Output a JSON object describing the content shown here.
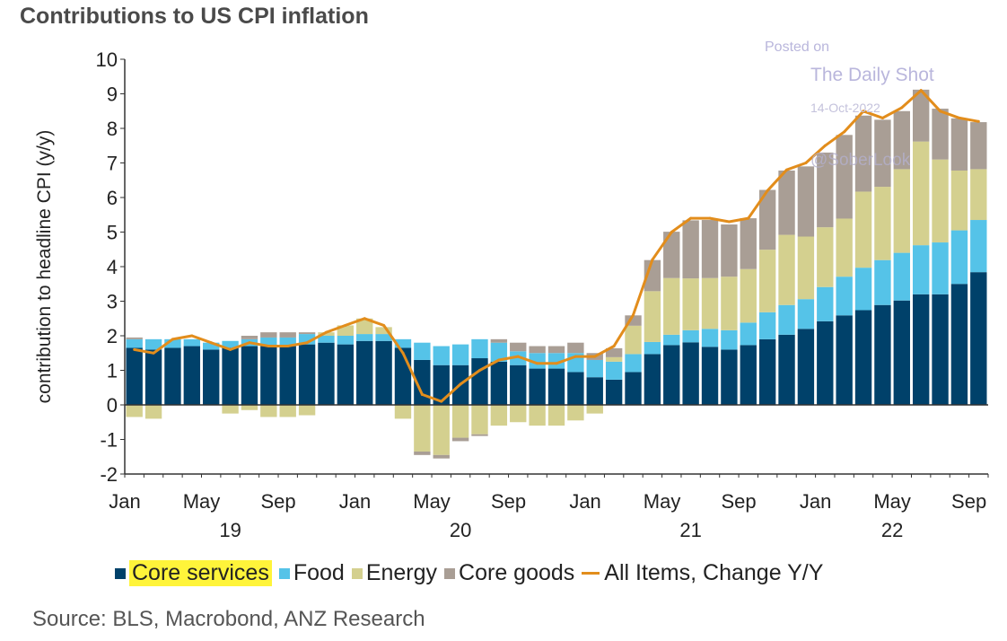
{
  "chart_data": {
    "type": "bar",
    "stacked": true,
    "title": "Contributions to US CPI inflation",
    "ylabel": "contribution to headline CPI (y/y)",
    "xlabel": "",
    "ylim": [
      -2,
      10
    ],
    "yticks": [
      10,
      9,
      8,
      7,
      6,
      5,
      4,
      3,
      2,
      1,
      0,
      -1,
      -2
    ],
    "months": [
      "Jan 19",
      "Feb 19",
      "Mar 19",
      "Apr 19",
      "May 19",
      "Jun 19",
      "Jul 19",
      "Aug 19",
      "Sep 19",
      "Oct 19",
      "Nov 19",
      "Dec 19",
      "Jan 20",
      "Feb 20",
      "Mar 20",
      "Apr 20",
      "May 20",
      "Jun 20",
      "Jul 20",
      "Aug 20",
      "Sep 20",
      "Oct 20",
      "Nov 20",
      "Dec 20",
      "Jan 21",
      "Feb 21",
      "Mar 21",
      "Apr 21",
      "May 21",
      "Jun 21",
      "Jul 21",
      "Aug 21",
      "Sep 21",
      "Oct 21",
      "Nov 21",
      "Dec 21",
      "Jan 22",
      "Feb 22",
      "Mar 22",
      "Apr 22",
      "May 22",
      "Jun 22",
      "Jul 22",
      "Aug 22",
      "Sep 22"
    ],
    "xtick_labels": [
      {
        "index": 0,
        "label": "Jan"
      },
      {
        "index": 4,
        "label": "May"
      },
      {
        "index": 8,
        "label": "Sep"
      },
      {
        "index": 12,
        "label": "Jan"
      },
      {
        "index": 16,
        "label": "May"
      },
      {
        "index": 20,
        "label": "Sep"
      },
      {
        "index": 24,
        "label": "Jan"
      },
      {
        "index": 28,
        "label": "May"
      },
      {
        "index": 32,
        "label": "Sep"
      },
      {
        "index": 36,
        "label": "Jan"
      },
      {
        "index": 40,
        "label": "May"
      },
      {
        "index": 44,
        "label": "Sep"
      }
    ],
    "year_labels": [
      {
        "index": 5.5,
        "label": "19"
      },
      {
        "index": 17.5,
        "label": "20"
      },
      {
        "index": 29.5,
        "label": "21"
      },
      {
        "index": 40,
        "label": "22"
      }
    ],
    "series": [
      {
        "name": "Core services",
        "type": "bar",
        "color": "#00416a",
        "values": [
          1.65,
          1.6,
          1.65,
          1.7,
          1.6,
          1.65,
          1.7,
          1.7,
          1.7,
          1.75,
          1.8,
          1.75,
          1.85,
          1.85,
          1.65,
          1.3,
          1.15,
          1.15,
          1.35,
          1.25,
          1.15,
          1.05,
          1.05,
          0.95,
          0.8,
          0.73,
          0.95,
          1.47,
          1.73,
          1.81,
          1.68,
          1.6,
          1.73,
          1.9,
          2.03,
          2.2,
          2.42,
          2.59,
          2.74,
          2.89,
          3.02,
          3.2,
          3.2,
          3.5,
          3.84
        ]
      },
      {
        "name": "Food",
        "type": "bar",
        "color": "#55c3e8",
        "values": [
          0.25,
          0.3,
          0.25,
          0.2,
          0.2,
          0.2,
          0.2,
          0.25,
          0.25,
          0.3,
          0.2,
          0.25,
          0.2,
          0.2,
          0.25,
          0.5,
          0.55,
          0.6,
          0.55,
          0.55,
          0.4,
          0.45,
          0.45,
          0.55,
          0.5,
          0.52,
          0.52,
          0.35,
          0.3,
          0.35,
          0.52,
          0.56,
          0.65,
          0.78,
          0.86,
          0.86,
          0.99,
          1.12,
          1.23,
          1.3,
          1.38,
          1.42,
          1.5,
          1.55,
          1.51
        ]
      },
      {
        "name": "Energy",
        "type": "bar",
        "color": "#d4d08f",
        "values": [
          -0.35,
          -0.4,
          0.0,
          0.0,
          0.0,
          -0.25,
          -0.15,
          -0.35,
          -0.35,
          -0.3,
          0.1,
          0.3,
          0.45,
          0.2,
          -0.4,
          -1.35,
          -1.45,
          -0.95,
          -0.85,
          -0.6,
          -0.5,
          -0.6,
          -0.6,
          -0.45,
          -0.25,
          0.13,
          0.82,
          1.47,
          1.64,
          1.5,
          1.47,
          1.55,
          1.55,
          1.81,
          2.03,
          1.81,
          1.73,
          1.68,
          2.2,
          2.12,
          2.42,
          3.0,
          2.4,
          1.73,
          1.47
        ]
      },
      {
        "name": "Core goods",
        "type": "bar",
        "color": "#a99e95",
        "values": [
          0.05,
          0.0,
          0.0,
          0.0,
          0.0,
          0.0,
          0.1,
          0.15,
          0.15,
          0.05,
          0.0,
          0.0,
          0.0,
          0.0,
          0.0,
          -0.1,
          -0.1,
          -0.1,
          -0.05,
          0.1,
          0.25,
          0.2,
          0.2,
          0.3,
          0.2,
          0.26,
          0.3,
          0.9,
          1.34,
          1.68,
          1.68,
          1.51,
          1.47,
          1.73,
          1.86,
          2.03,
          2.16,
          2.42,
          2.2,
          1.94,
          1.68,
          1.5,
          1.47,
          1.51,
          1.36
        ]
      },
      {
        "name": "All Items, Change Y/Y",
        "type": "line",
        "color": "#e28d1c",
        "values": [
          1.6,
          1.5,
          1.9,
          2.0,
          1.8,
          1.6,
          1.8,
          1.7,
          1.7,
          1.8,
          2.1,
          2.3,
          2.5,
          2.3,
          1.5,
          0.3,
          0.1,
          0.6,
          1.0,
          1.3,
          1.4,
          1.2,
          1.2,
          1.4,
          1.4,
          1.7,
          2.6,
          4.2,
          5.0,
          5.4,
          5.4,
          5.3,
          5.4,
          6.2,
          6.8,
          7.0,
          7.5,
          7.9,
          8.5,
          8.3,
          8.6,
          9.1,
          8.5,
          8.3,
          8.2
        ]
      }
    ],
    "legend_position": "bottom",
    "grid": false
  },
  "legend": {
    "core_services": "Core services",
    "food": "Food",
    "energy": "Energy",
    "core_goods": "Core goods",
    "all_items": "All Items, Change Y/Y"
  },
  "watermark": {
    "posted_on": "Posted on",
    "site": "The Daily Shot",
    "date": "14-Oct-2022",
    "handle": "@SoberLook"
  },
  "source": "Source: BLS, Macrobond, ANZ Research"
}
